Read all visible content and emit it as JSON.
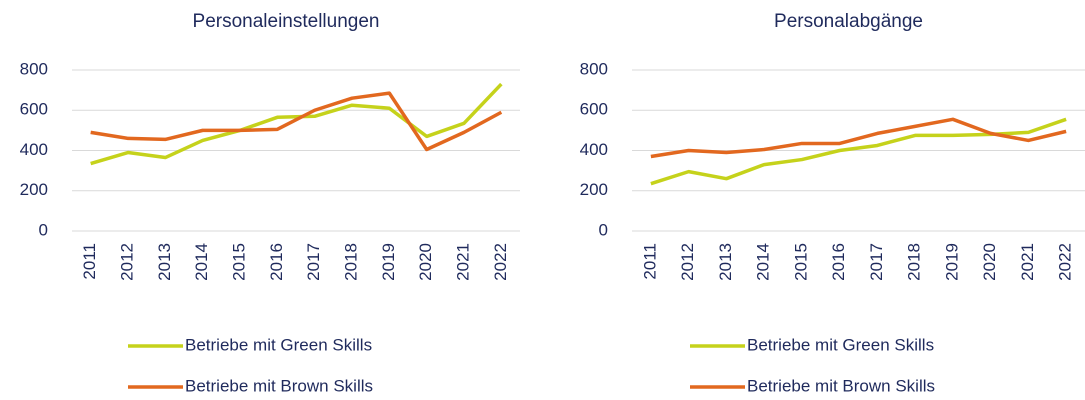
{
  "chart_data": [
    {
      "type": "line",
      "title": "Personaleinstellungen",
      "categories": [
        "2011",
        "2012",
        "2013",
        "2014",
        "2015",
        "2016",
        "2017",
        "2018",
        "2019",
        "2020",
        "2021",
        "2022"
      ],
      "series": [
        {
          "name": "Betriebe mit Green Skills",
          "color": "#c5d21b",
          "values": [
            335,
            390,
            365,
            450,
            500,
            565,
            570,
            625,
            610,
            470,
            535,
            730
          ]
        },
        {
          "name": "Betriebe mit Brown Skills",
          "color": "#e2681f",
          "values": [
            490,
            460,
            455,
            500,
            500,
            505,
            600,
            660,
            685,
            405,
            490,
            590
          ]
        }
      ],
      "ylim": [
        0,
        800
      ],
      "yticks": [
        0,
        200,
        400,
        600,
        800
      ],
      "grid": true,
      "legend": "bottom"
    },
    {
      "type": "line",
      "title": "Personalabgänge",
      "categories": [
        "2011",
        "2012",
        "2013",
        "2014",
        "2015",
        "2016",
        "2017",
        "2018",
        "2019",
        "2020",
        "2021",
        "2022"
      ],
      "series": [
        {
          "name": "Betriebe mit Green Skills",
          "color": "#c5d21b",
          "values": [
            235,
            295,
            260,
            330,
            355,
            400,
            425,
            475,
            475,
            480,
            490,
            555
          ]
        },
        {
          "name": "Betriebe mit Brown Skills",
          "color": "#e2681f",
          "values": [
            370,
            400,
            390,
            405,
            435,
            435,
            485,
            520,
            555,
            485,
            450,
            495
          ]
        }
      ],
      "ylim": [
        0,
        800
      ],
      "yticks": [
        0,
        200,
        400,
        600,
        800
      ],
      "grid": true,
      "legend": "bottom"
    }
  ]
}
